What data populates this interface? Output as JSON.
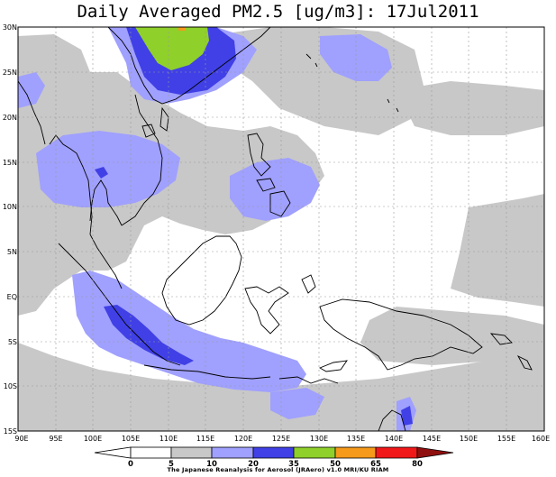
{
  "title": "Daily Averaged PM2.5 [ug/m3]: 17Jul2011",
  "credit": "The Japanese Reanalysis for Aerosol (JRAero) v1.0 MRI/KU RIAM",
  "map": {
    "lon_range": [
      90,
      160
    ],
    "lat_range": [
      -15,
      30
    ],
    "lon_ticks": [
      "90E",
      "95E",
      "100E",
      "105E",
      "110E",
      "115E",
      "120E",
      "125E",
      "130E",
      "135E",
      "140E",
      "145E",
      "150E",
      "155E",
      "160E"
    ],
    "lat_ticks": [
      "30N",
      "25N",
      "20N",
      "15N",
      "10N",
      "5N",
      "EQ",
      "5S",
      "10S",
      "15S"
    ]
  },
  "legend": {
    "labels": [
      "0",
      "5",
      "10",
      "20",
      "35",
      "50",
      "65",
      "80"
    ],
    "colors": [
      "#ffffff",
      "#c8c8c8",
      "#a0a0ff",
      "#4040e6",
      "#8fd02a",
      "#f59a1a",
      "#f01818",
      "#901010"
    ]
  },
  "colors": {
    "light_gray": "#c8c8c8",
    "light_blue": "#a0a0ff",
    "blue": "#4040e6",
    "green": "#8fd02a",
    "orange": "#f59a1a",
    "grid": "#9a9a9a"
  }
}
